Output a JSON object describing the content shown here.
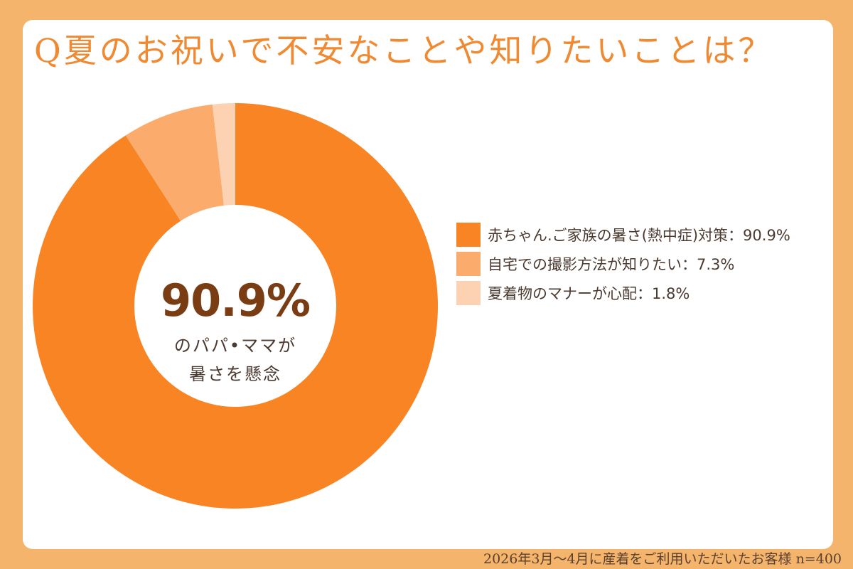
{
  "chart_data": {
    "type": "pie",
    "title": "Q夏のお祝いで不安なことや知りたいことは？",
    "series": [
      {
        "name": "赤ちゃん.ご家族の暑さ(熱中症)対策",
        "value": 90.9,
        "color": "#f98424"
      },
      {
        "name": "自宅での撮影方法が知りたい",
        "value": 7.3,
        "color": "#fbab6c"
      },
      {
        "name": "夏着物のマナーが心配",
        "value": 1.8,
        "color": "#fdd2b2"
      }
    ],
    "legend_labels": [
      "赤ちゃん.ご家族の暑さ(熱中症)対策：90.9%",
      "自宅での撮影方法が知りたい：7.3%",
      "夏着物のマナーが心配：1.8%"
    ],
    "legend_position": "right",
    "center_value": "90.9%",
    "center_text_line1": "のパパ•ママが",
    "center_text_line2": "暑さを懸念"
  },
  "footer": "2026年3月〜4月に産着をご利用いただいたお客様  n=400",
  "colors": {
    "background": "#f5b46c",
    "card": "#ffffff",
    "title": "#f08a32",
    "center_value": "#7a3d13"
  }
}
